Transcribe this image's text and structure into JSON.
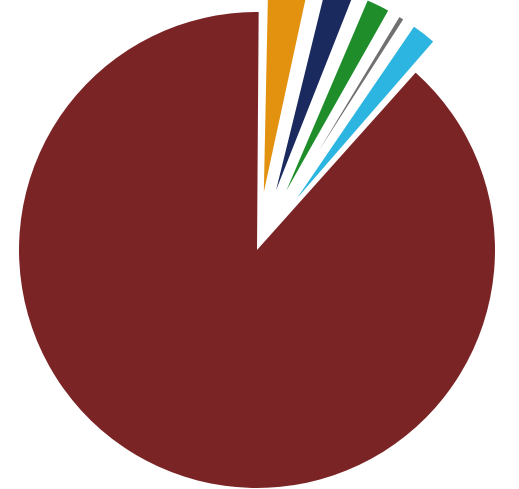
{
  "chart_data": {
    "type": "pie",
    "exploded": true,
    "legend": "none",
    "title": "",
    "series": [
      {
        "values": [
          88.5,
          3.5,
          2.6,
          2.2,
          0.9,
          2.3
        ],
        "colors": [
          "#7B2426",
          "#E3920F",
          "#1A2A5E",
          "#1F8E2A",
          "#707070",
          "#2BB5E0"
        ]
      }
    ]
  }
}
